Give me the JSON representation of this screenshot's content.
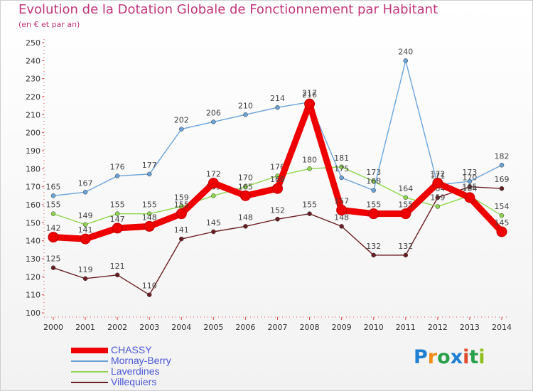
{
  "header": {
    "title": "Evolution de la Dotation Globale de Fonctionnement par Habitant",
    "subtitle": "(en € et par an)"
  },
  "logo": {
    "text": "Proxiti",
    "colors": [
      "#1f7fd0",
      "#f08c18",
      "#2aa04a",
      "#1f7fd0",
      "#e04a2a",
      "#2aa04a",
      "#8fbf1c"
    ]
  },
  "chart_data": {
    "type": "line",
    "x": [
      2000,
      2001,
      2002,
      2003,
      2004,
      2005,
      2006,
      2007,
      2008,
      2009,
      2010,
      2011,
      2012,
      2013,
      2014
    ],
    "ylim": [
      100,
      250
    ],
    "yticks": [
      100,
      110,
      120,
      130,
      140,
      150,
      160,
      170,
      180,
      190,
      200,
      210,
      220,
      230,
      240,
      250
    ],
    "grid": false,
    "legend_position": "bottom-left",
    "series": [
      {
        "name": "Villequiers",
        "color": "#6b1e22",
        "values": [
          125,
          119,
          121,
          110,
          141,
          145,
          148,
          152,
          155,
          148,
          132,
          132,
          164,
          170,
          169
        ]
      },
      {
        "name": "Laverdines",
        "color": "#8fd64e",
        "values": [
          155,
          149,
          155,
          155,
          159,
          165,
          170,
          176,
          180,
          181,
          173,
          164,
          159,
          165,
          154
        ]
      },
      {
        "name": "Mornay-Berry",
        "color": "#6aa3d8",
        "values": [
          165,
          167,
          176,
          177,
          202,
          206,
          210,
          214,
          217,
          175,
          168,
          240,
          171,
          173,
          182
        ]
      },
      {
        "name": "CHASSY",
        "color": "#ee0000",
        "values": [
          142,
          141,
          147,
          148,
          155,
          172,
          165,
          169,
          216,
          157,
          155,
          155,
          172,
          164,
          145
        ]
      }
    ]
  }
}
